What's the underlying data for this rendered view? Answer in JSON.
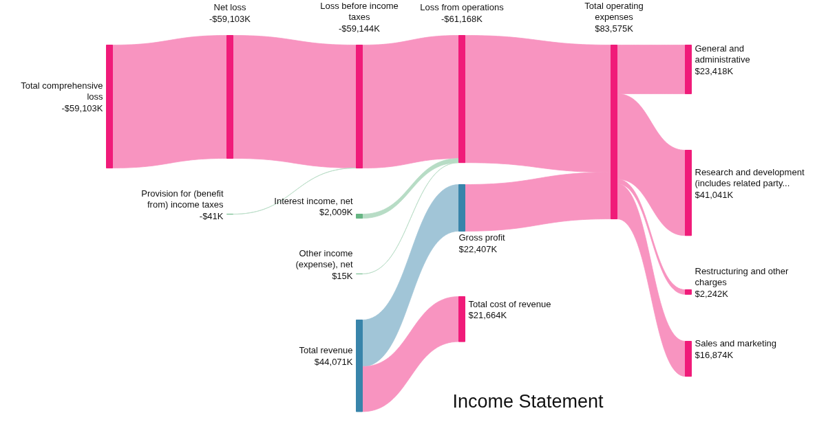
{
  "chart_data": {
    "type": "other",
    "title": "Income Statement",
    "categories": [
      "Total comprehensive loss",
      "Net loss",
      "Provision for (benefit from) income taxes",
      "Loss before income taxes",
      "Interest income, net",
      "Other income (expense), net",
      "Total revenue",
      "Loss from operations",
      "Gross profit",
      "Total cost of revenue",
      "Total operating expenses",
      "General and administrative",
      "Research and development (includes related party...",
      "Restructuring and other charges",
      "Sales and marketing"
    ],
    "values": [
      -59103,
      -59103,
      -41,
      -59144,
      2009,
      15,
      44071,
      -61168,
      22407,
      21664,
      83575,
      23418,
      41041,
      2242,
      16874
    ],
    "value_labels": [
      "-$59,103K",
      "-$59,103K",
      "-$41K",
      "-$59,144K",
      "$2,009K",
      "$15K",
      "$44,071K",
      "-$61,168K",
      "$22,407K",
      "$21,664K",
      "$83,575K",
      "$23,418K",
      "$41,041K",
      "$2,242K",
      "$16,874K"
    ],
    "colors": [
      "#f01b79",
      "#f01b79",
      "#66b583",
      "#f01b79",
      "#66b583",
      "#66b583",
      "#3884aa",
      "#f01b79",
      "#3884aa",
      "#f01b79",
      "#f01b79",
      "#f01b79",
      "#f01b79",
      "#f01b79",
      "#f01b79"
    ]
  }
}
